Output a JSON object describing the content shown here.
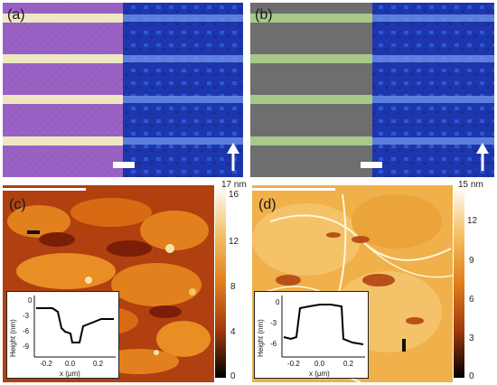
{
  "panels": {
    "a": {
      "label": "(a)"
    },
    "b": {
      "label": "(b)"
    },
    "c": {
      "label": "(c)",
      "colorbar": {
        "max_label": "17 nm",
        "ticks": [
          "16",
          "12",
          "8",
          "4",
          "0"
        ]
      },
      "inset": {
        "ylabel": "Height (nm)",
        "xlabel": "x (μm)",
        "yticks": [
          "0",
          "-3",
          "-6",
          "-9"
        ],
        "xticks": [
          "-0.2",
          "0.0",
          "0.2"
        ]
      }
    },
    "d": {
      "label": "(d)",
      "colorbar": {
        "max_label": "15 nm",
        "ticks": [
          "12",
          "9",
          "6",
          "3",
          "0"
        ]
      },
      "inset": {
        "ylabel": "Height (nm)",
        "xlabel": "x (μm)",
        "yticks": [
          "0",
          "-3",
          "-6"
        ],
        "xticks": [
          "-0.2",
          "0.0",
          "0.2"
        ]
      }
    }
  },
  "colors": {
    "purple_bg": "#9a62c4",
    "stripe": "#efe7c2",
    "blue_bg": "#1f3bb6",
    "gray_bg": "#6e6e6e",
    "green_stripe": "#a7c98a",
    "afm_dark": "#7a1e08",
    "afm_mid": "#e2801e",
    "afm_light": "#f4c268"
  }
}
